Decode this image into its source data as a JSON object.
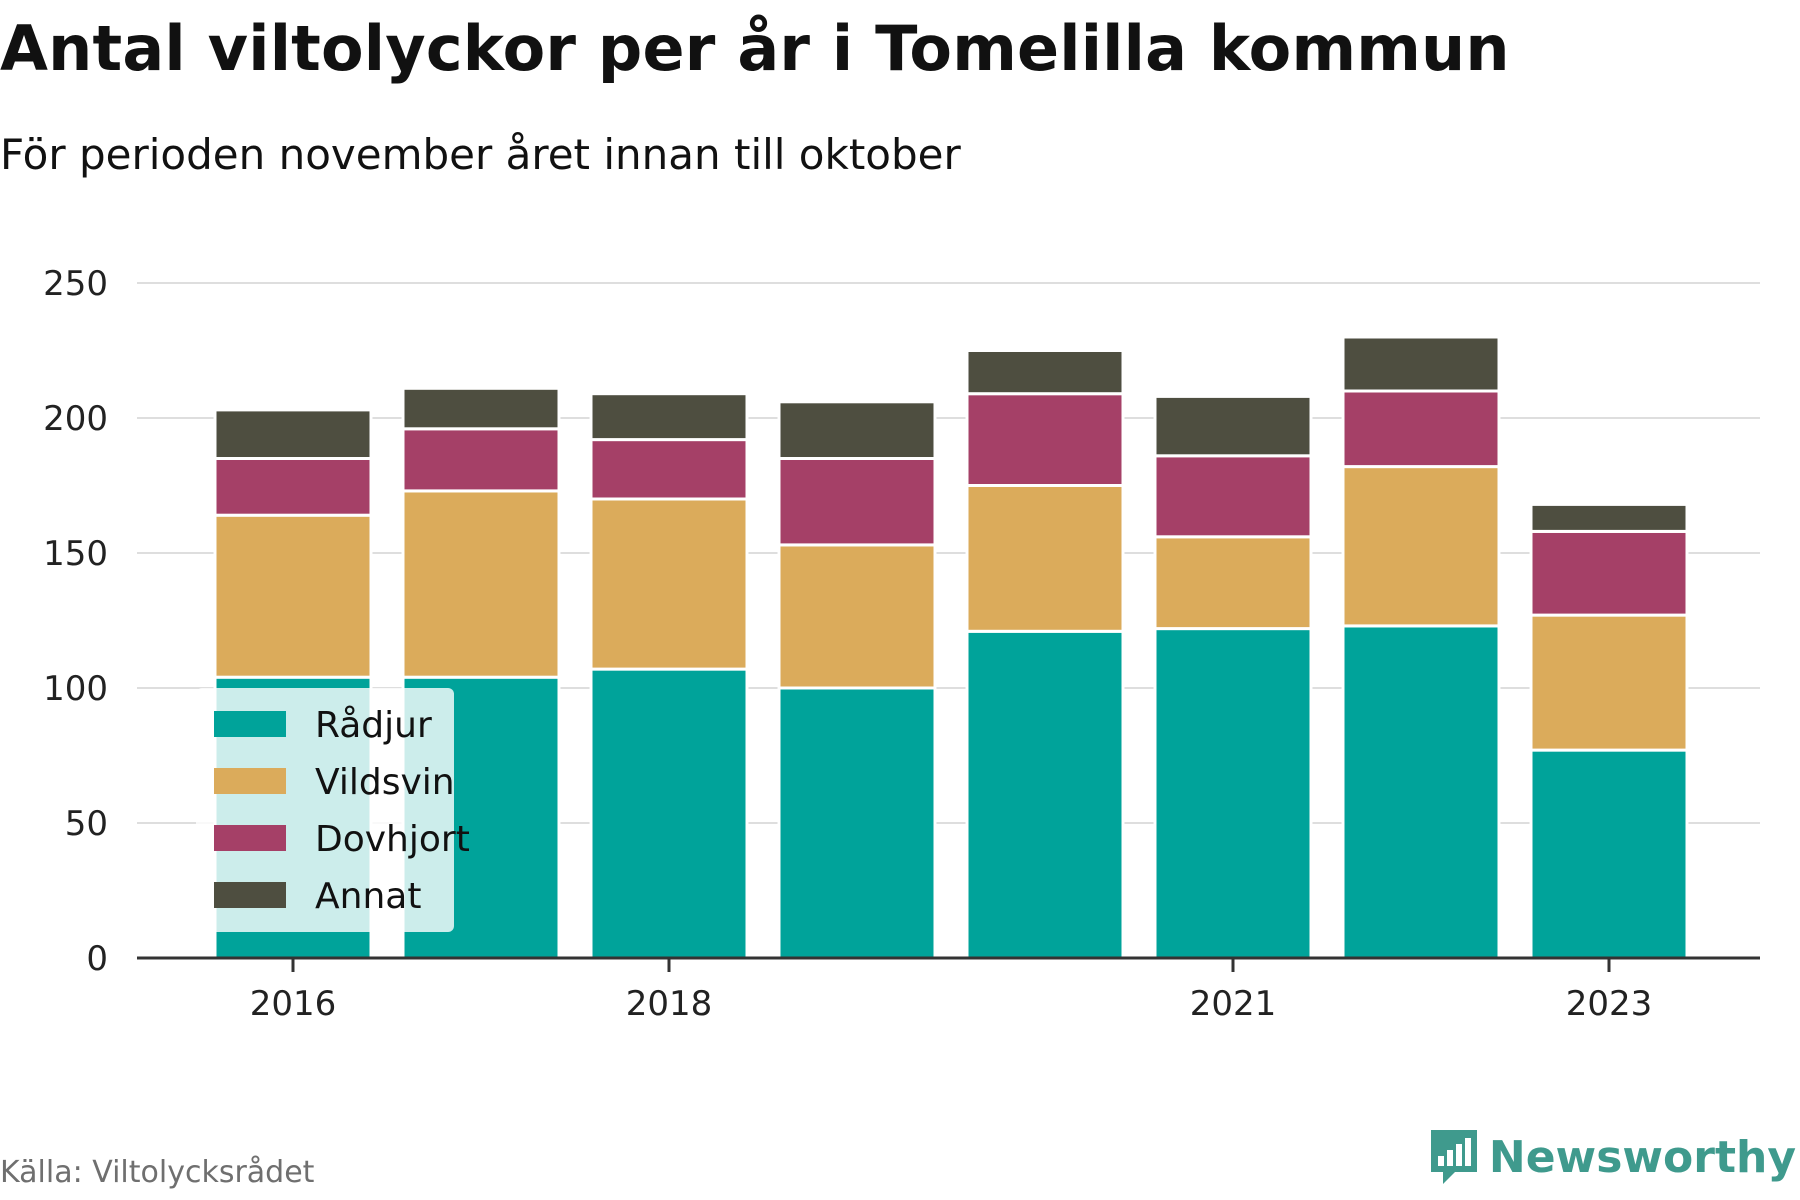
{
  "title": "Antal viltolyckor per år i Tomelilla kommun",
  "subtitle": "För perioden november året innan till oktober",
  "source": "Källa: Viltolycksrådet",
  "brand": "Newsworthy",
  "colors": {
    "Rådjur": "#00a39a",
    "Vildsvin": "#dbab5b",
    "Dovhjort": "#a54067",
    "Annat": "#4e4e40",
    "grid": "#dedede",
    "axis": "#333333",
    "brand": "#3f9a8d"
  },
  "chart_data": {
    "type": "bar",
    "stacked": true,
    "x": [
      2016,
      2017,
      2018,
      2019,
      2020,
      2021,
      2022,
      2023
    ],
    "x_tick_labels": [
      "2016",
      "2018",
      "2021",
      "2023"
    ],
    "x_tick_values": [
      2016,
      2018,
      2021,
      2023
    ],
    "series": [
      {
        "name": "Rådjur",
        "values": [
          104,
          104,
          107,
          100,
          121,
          122,
          123,
          77
        ]
      },
      {
        "name": "Vildsvin",
        "values": [
          60,
          69,
          63,
          53,
          54,
          34,
          59,
          50
        ]
      },
      {
        "name": "Dovhjort",
        "values": [
          21,
          23,
          22,
          32,
          34,
          30,
          28,
          31
        ]
      },
      {
        "name": "Annat",
        "values": [
          18,
          15,
          17,
          21,
          16,
          22,
          20,
          10
        ]
      }
    ],
    "y_ticks": [
      0,
      50,
      100,
      150,
      200,
      250
    ],
    "ylim": [
      0,
      250
    ],
    "grid": true,
    "legend_position": "bottom-left"
  }
}
